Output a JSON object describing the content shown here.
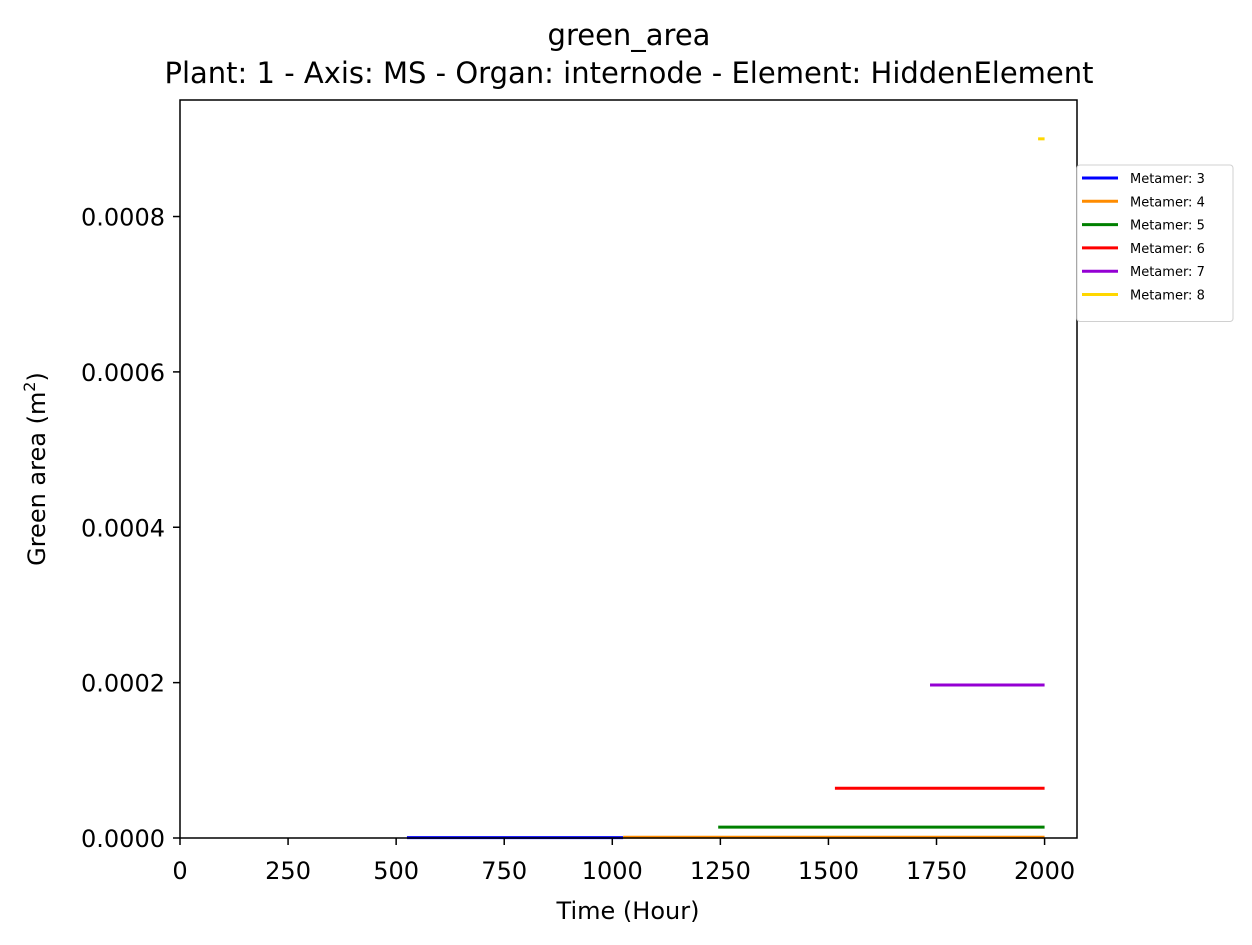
{
  "chart_data": {
    "type": "line",
    "title": "green_area",
    "subtitle": "Plant: 1 - Axis: MS - Organ: internode - Element: HiddenElement",
    "xlabel": "Time (Hour)",
    "ylabel_main": "Green area (m",
    "ylabel_sup": "2",
    "ylabel_close": ")",
    "xlim": [
      0,
      2075
    ],
    "ylim": [
      0,
      0.00095
    ],
    "xticks": [
      0,
      250,
      500,
      750,
      1000,
      1250,
      1500,
      1750,
      2000
    ],
    "xtick_labels": [
      "0",
      "250",
      "500",
      "750",
      "1000",
      "1250",
      "1500",
      "1750",
      "2000"
    ],
    "yticks": [
      0,
      0.0002,
      0.0004,
      0.0006,
      0.0008
    ],
    "ytick_labels": [
      "0.0000",
      "0.0002",
      "0.0004",
      "0.0006",
      "0.0008"
    ],
    "grid": false,
    "legend_position": "outside top-right",
    "series": [
      {
        "name": "Metamer: 3",
        "color": "#0000ff",
        "x": [
          525,
          1025
        ],
        "y": [
          5e-07,
          5e-07
        ]
      },
      {
        "name": "Metamer: 4",
        "color": "#ff8c00",
        "x": [
          1025,
          2000
        ],
        "y": [
          1e-06,
          1e-06
        ]
      },
      {
        "name": "Metamer: 5",
        "color": "#008000",
        "x": [
          1245,
          2000
        ],
        "y": [
          1.4e-05,
          1.4e-05
        ]
      },
      {
        "name": "Metamer: 6",
        "color": "#ff0000",
        "x": [
          1515,
          2000
        ],
        "y": [
          6.4e-05,
          6.4e-05
        ]
      },
      {
        "name": "Metamer: 7",
        "color": "#9400d3",
        "x": [
          1735,
          2000
        ],
        "y": [
          0.000197,
          0.000197
        ]
      },
      {
        "name": "Metamer: 8",
        "color": "#ffd700",
        "x": [
          1985,
          2000
        ],
        "y": [
          0.0009,
          0.0009
        ]
      }
    ]
  }
}
